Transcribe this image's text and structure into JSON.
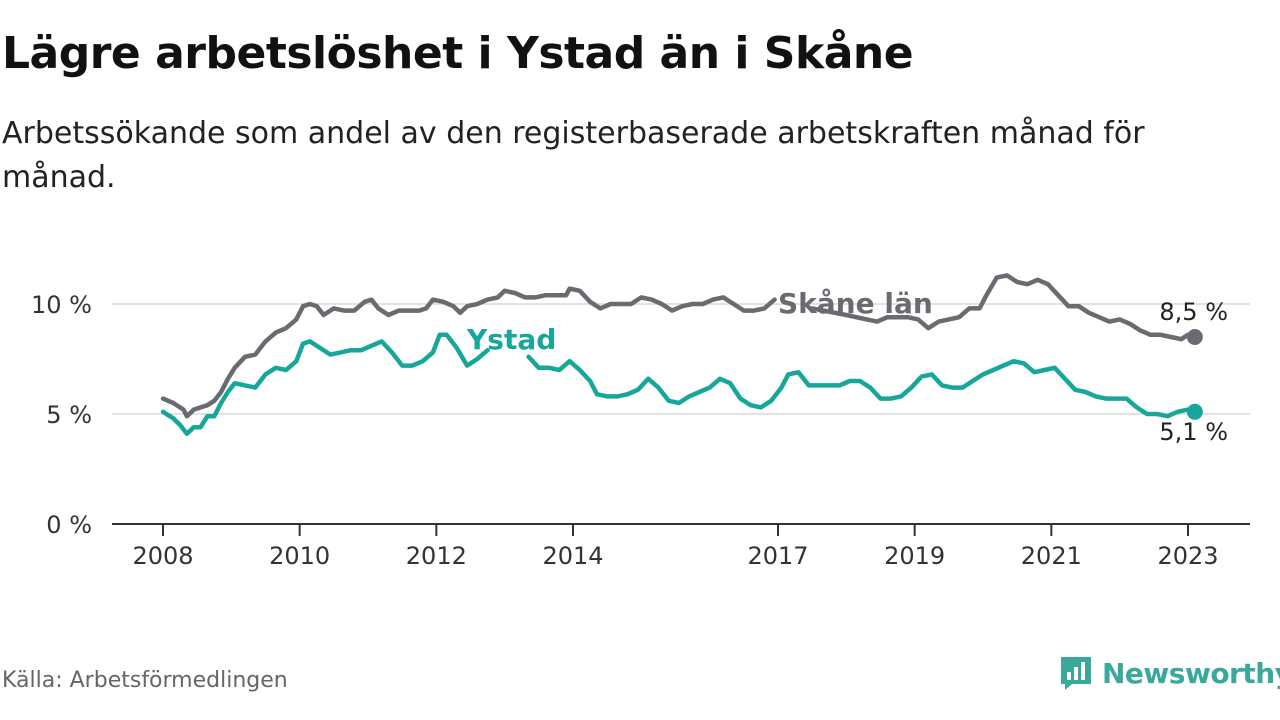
{
  "title": "Lägre arbetslöshet i Ystad än i Skåne",
  "subtitle": "Arbetssökande som andel av den registerbaserade arbetskraften månad för månad.",
  "source": "Källa: Arbetsförmedlingen",
  "brand": "Newsworthy",
  "colors": {
    "skane": "#6b6a70",
    "ystad": "#17a79a",
    "grid": "#d9d9d9",
    "axis": "#333333",
    "brand": "#3aa89a"
  },
  "chart_data": {
    "type": "line",
    "title": "Lägre arbetslöshet i Ystad än i Skåne",
    "ylabel": "",
    "xlabel": "",
    "xlim": [
      2008,
      2023.9
    ],
    "ylim": [
      0,
      12
    ],
    "x_ticks": [
      2008,
      2010,
      2012,
      2014,
      2017,
      2019,
      2021,
      2023
    ],
    "x_tick_labels": [
      "2008",
      "2010",
      "2012",
      "2014",
      "2017",
      "2019",
      "2021",
      "2023"
    ],
    "y_ticks": [
      0,
      5,
      10
    ],
    "y_tick_labels": [
      "0 %",
      "5 %",
      "10 %"
    ],
    "series": [
      {
        "name": "Skåne län",
        "label": "Skåne län",
        "end_label": "8,5 %",
        "points": [
          [
            2008.0,
            5.7
          ],
          [
            2008.15,
            5.5
          ],
          [
            2008.3,
            5.2
          ],
          [
            2008.35,
            4.9
          ],
          [
            2008.45,
            5.2
          ],
          [
            2008.55,
            5.3
          ],
          [
            2008.65,
            5.4
          ],
          [
            2008.75,
            5.6
          ],
          [
            2008.85,
            6.0
          ],
          [
            2008.95,
            6.6
          ],
          [
            2009.05,
            7.1
          ],
          [
            2009.2,
            7.6
          ],
          [
            2009.35,
            7.7
          ],
          [
            2009.5,
            8.3
          ],
          [
            2009.65,
            8.7
          ],
          [
            2009.8,
            8.9
          ],
          [
            2009.95,
            9.3
          ],
          [
            2010.05,
            9.9
          ],
          [
            2010.15,
            10.0
          ],
          [
            2010.25,
            9.9
          ],
          [
            2010.35,
            9.5
          ],
          [
            2010.5,
            9.8
          ],
          [
            2010.65,
            9.7
          ],
          [
            2010.8,
            9.7
          ],
          [
            2010.95,
            10.1
          ],
          [
            2011.05,
            10.2
          ],
          [
            2011.15,
            9.8
          ],
          [
            2011.3,
            9.5
          ],
          [
            2011.45,
            9.7
          ],
          [
            2011.6,
            9.7
          ],
          [
            2011.75,
            9.7
          ],
          [
            2011.85,
            9.8
          ],
          [
            2011.95,
            10.2
          ],
          [
            2012.1,
            10.1
          ],
          [
            2012.25,
            9.9
          ],
          [
            2012.35,
            9.6
          ],
          [
            2012.45,
            9.9
          ],
          [
            2012.6,
            10.0
          ],
          [
            2012.75,
            10.2
          ],
          [
            2012.9,
            10.3
          ],
          [
            2013.0,
            10.6
          ],
          [
            2013.15,
            10.5
          ],
          [
            2013.3,
            10.3
          ],
          [
            2013.45,
            10.3
          ],
          [
            2013.6,
            10.4
          ],
          [
            2013.75,
            10.4
          ],
          [
            2013.9,
            10.4
          ],
          [
            2013.95,
            10.7
          ],
          [
            2014.1,
            10.6
          ],
          [
            2014.25,
            10.1
          ],
          [
            2014.4,
            9.8
          ],
          [
            2014.55,
            10.0
          ],
          [
            2014.7,
            10.0
          ],
          [
            2014.85,
            10.0
          ],
          [
            2015.0,
            10.3
          ],
          [
            2015.15,
            10.2
          ],
          [
            2015.3,
            10.0
          ],
          [
            2015.45,
            9.7
          ],
          [
            2015.6,
            9.9
          ],
          [
            2015.75,
            10.0
          ],
          [
            2015.9,
            10.0
          ],
          [
            2016.05,
            10.2
          ],
          [
            2016.2,
            10.3
          ],
          [
            2016.35,
            10.0
          ],
          [
            2016.5,
            9.7
          ],
          [
            2016.65,
            9.7
          ],
          [
            2016.8,
            9.8
          ],
          [
            2016.95,
            10.2
          ],
          [
            2017.5,
            9.8
          ],
          [
            2018.0,
            9.5
          ],
          [
            2018.3,
            9.3
          ],
          [
            2018.45,
            9.2
          ],
          [
            2018.6,
            9.4
          ],
          [
            2018.75,
            9.4
          ],
          [
            2018.9,
            9.4
          ],
          [
            2019.05,
            9.3
          ],
          [
            2019.2,
            8.9
          ],
          [
            2019.35,
            9.2
          ],
          [
            2019.5,
            9.3
          ],
          [
            2019.65,
            9.4
          ],
          [
            2019.8,
            9.8
          ],
          [
            2019.95,
            9.8
          ],
          [
            2020.05,
            10.4
          ],
          [
            2020.2,
            11.2
          ],
          [
            2020.35,
            11.3
          ],
          [
            2020.5,
            11.0
          ],
          [
            2020.65,
            10.9
          ],
          [
            2020.8,
            11.1
          ],
          [
            2020.95,
            10.9
          ],
          [
            2021.1,
            10.4
          ],
          [
            2021.25,
            9.9
          ],
          [
            2021.4,
            9.9
          ],
          [
            2021.55,
            9.6
          ],
          [
            2021.7,
            9.4
          ],
          [
            2021.85,
            9.2
          ],
          [
            2022.0,
            9.3
          ],
          [
            2022.15,
            9.1
          ],
          [
            2022.3,
            8.8
          ],
          [
            2022.45,
            8.6
          ],
          [
            2022.6,
            8.6
          ],
          [
            2022.75,
            8.5
          ],
          [
            2022.9,
            8.4
          ],
          [
            2023.0,
            8.6
          ],
          [
            2023.1,
            8.5
          ]
        ]
      },
      {
        "name": "Ystad",
        "label": "Ystad",
        "end_label": "5,1 %",
        "points": [
          [
            2008.0,
            5.1
          ],
          [
            2008.15,
            4.8
          ],
          [
            2008.25,
            4.5
          ],
          [
            2008.35,
            4.1
          ],
          [
            2008.45,
            4.4
          ],
          [
            2008.55,
            4.4
          ],
          [
            2008.65,
            4.9
          ],
          [
            2008.75,
            4.9
          ],
          [
            2008.85,
            5.5
          ],
          [
            2008.95,
            6.0
          ],
          [
            2009.05,
            6.4
          ],
          [
            2009.2,
            6.3
          ],
          [
            2009.35,
            6.2
          ],
          [
            2009.5,
            6.8
          ],
          [
            2009.65,
            7.1
          ],
          [
            2009.8,
            7.0
          ],
          [
            2009.95,
            7.4
          ],
          [
            2010.05,
            8.2
          ],
          [
            2010.15,
            8.3
          ],
          [
            2010.3,
            8.0
          ],
          [
            2010.45,
            7.7
          ],
          [
            2010.6,
            7.8
          ],
          [
            2010.75,
            7.9
          ],
          [
            2010.9,
            7.9
          ],
          [
            2011.05,
            8.1
          ],
          [
            2011.2,
            8.3
          ],
          [
            2011.35,
            7.8
          ],
          [
            2011.5,
            7.2
          ],
          [
            2011.65,
            7.2
          ],
          [
            2011.8,
            7.4
          ],
          [
            2011.95,
            7.8
          ],
          [
            2012.05,
            8.6
          ],
          [
            2012.15,
            8.6
          ],
          [
            2012.3,
            8.0
          ],
          [
            2012.45,
            7.2
          ],
          [
            2012.6,
            7.5
          ],
          [
            2012.75,
            7.9
          ],
          [
            2013.35,
            7.6
          ],
          [
            2013.5,
            7.1
          ],
          [
            2013.65,
            7.1
          ],
          [
            2013.8,
            7.0
          ],
          [
            2013.95,
            7.4
          ],
          [
            2014.1,
            7.0
          ],
          [
            2014.25,
            6.5
          ],
          [
            2014.35,
            5.9
          ],
          [
            2014.5,
            5.8
          ],
          [
            2014.65,
            5.8
          ],
          [
            2014.8,
            5.9
          ],
          [
            2014.95,
            6.1
          ],
          [
            2015.1,
            6.6
          ],
          [
            2015.25,
            6.2
          ],
          [
            2015.4,
            5.6
          ],
          [
            2015.55,
            5.5
          ],
          [
            2015.7,
            5.8
          ],
          [
            2015.85,
            6.0
          ],
          [
            2016.0,
            6.2
          ],
          [
            2016.15,
            6.6
          ],
          [
            2016.3,
            6.4
          ],
          [
            2016.45,
            5.7
          ],
          [
            2016.6,
            5.4
          ],
          [
            2016.75,
            5.3
          ],
          [
            2016.9,
            5.6
          ],
          [
            2017.05,
            6.2
          ],
          [
            2017.15,
            6.8
          ],
          [
            2017.3,
            6.9
          ],
          [
            2017.45,
            6.3
          ],
          [
            2017.6,
            6.3
          ],
          [
            2017.75,
            6.3
          ],
          [
            2017.9,
            6.3
          ],
          [
            2018.05,
            6.5
          ],
          [
            2018.2,
            6.5
          ],
          [
            2018.35,
            6.2
          ],
          [
            2018.5,
            5.7
          ],
          [
            2018.65,
            5.7
          ],
          [
            2018.8,
            5.8
          ],
          [
            2018.95,
            6.2
          ],
          [
            2019.1,
            6.7
          ],
          [
            2019.25,
            6.8
          ],
          [
            2019.4,
            6.3
          ],
          [
            2019.55,
            6.2
          ],
          [
            2019.7,
            6.2
          ],
          [
            2019.85,
            6.5
          ],
          [
            2020.0,
            6.8
          ],
          [
            2020.15,
            7.0
          ],
          [
            2020.3,
            7.2
          ],
          [
            2020.45,
            7.4
          ],
          [
            2020.6,
            7.3
          ],
          [
            2020.75,
            6.9
          ],
          [
            2020.9,
            7.0
          ],
          [
            2021.05,
            7.1
          ],
          [
            2021.2,
            6.6
          ],
          [
            2021.35,
            6.1
          ],
          [
            2021.5,
            6.0
          ],
          [
            2021.65,
            5.8
          ],
          [
            2021.8,
            5.7
          ],
          [
            2021.95,
            5.7
          ],
          [
            2022.1,
            5.7
          ],
          [
            2022.25,
            5.3
          ],
          [
            2022.4,
            5.0
          ],
          [
            2022.55,
            5.0
          ],
          [
            2022.7,
            4.9
          ],
          [
            2022.85,
            5.1
          ],
          [
            2023.0,
            5.2
          ],
          [
            2023.1,
            5.1
          ]
        ]
      }
    ],
    "gaps": {
      "Skåne län": [
        2016.95,
        2017.5
      ],
      "Ystad": [
        2012.75,
        2013.35
      ]
    }
  }
}
